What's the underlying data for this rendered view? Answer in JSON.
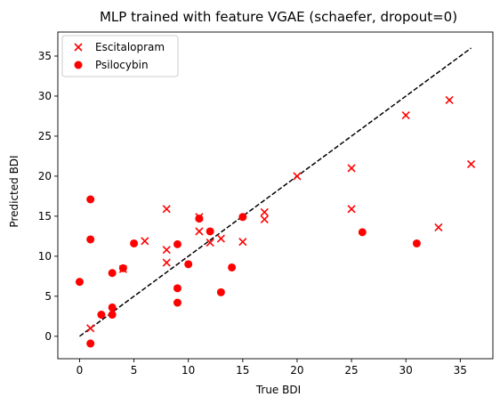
{
  "chart_data": {
    "type": "scatter",
    "title": "MLP trained with feature VGAE (schaefer, dropout=0)",
    "xlabel": "True BDI",
    "ylabel": "Predicted BDI",
    "xlim": [
      -2.0,
      38.0
    ],
    "ylim": [
      -2.8,
      38.0
    ],
    "xticks": [
      0,
      5,
      10,
      15,
      20,
      25,
      30,
      35
    ],
    "yticks": [
      0,
      5,
      10,
      15,
      20,
      25,
      30,
      35
    ],
    "grid": false,
    "legend": "upper-left",
    "reference_line": {
      "style": "dashed",
      "color": "#000000",
      "x": [
        0,
        36
      ],
      "y": [
        0,
        36
      ]
    },
    "series": [
      {
        "name": "Escitalopram",
        "marker": "x",
        "color": "#ff0000",
        "points": [
          [
            1,
            1.0
          ],
          [
            4,
            8.4
          ],
          [
            6,
            11.9
          ],
          [
            8,
            15.9
          ],
          [
            8,
            10.8
          ],
          [
            8,
            9.2
          ],
          [
            11,
            14.9
          ],
          [
            11,
            13.1
          ],
          [
            12,
            11.7
          ],
          [
            13,
            12.2
          ],
          [
            15,
            11.8
          ],
          [
            17,
            15.5
          ],
          [
            17,
            14.6
          ],
          [
            20,
            20.0
          ],
          [
            25,
            21.0
          ],
          [
            25,
            15.9
          ],
          [
            30,
            27.6
          ],
          [
            33,
            13.6
          ],
          [
            34,
            29.5
          ],
          [
            36,
            21.5
          ]
        ]
      },
      {
        "name": "Psilocybin",
        "marker": "o",
        "color": "#ff0000",
        "points": [
          [
            0,
            6.8
          ],
          [
            1,
            17.1
          ],
          [
            1,
            12.1
          ],
          [
            1,
            -0.9
          ],
          [
            2,
            2.7
          ],
          [
            3,
            7.9
          ],
          [
            3,
            3.6
          ],
          [
            3,
            2.7
          ],
          [
            4,
            8.5
          ],
          [
            5,
            11.6
          ],
          [
            9,
            11.5
          ],
          [
            9,
            6.0
          ],
          [
            9,
            4.2
          ],
          [
            10,
            9.0
          ],
          [
            11,
            14.7
          ],
          [
            12,
            13.1
          ],
          [
            13,
            5.5
          ],
          [
            14,
            8.6
          ],
          [
            15,
            14.9
          ],
          [
            26,
            13.0
          ],
          [
            31,
            11.6
          ]
        ]
      }
    ]
  }
}
